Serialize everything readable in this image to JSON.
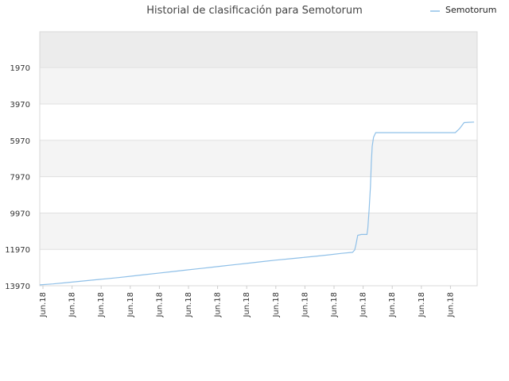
{
  "chart_data": {
    "type": "line",
    "title": "Historial de clasificación para Semotorum",
    "xlabel": "",
    "ylabel": "",
    "y_inverted": true,
    "ylim": [
      13970,
      0
    ],
    "y_ticks": [
      1970,
      3970,
      5970,
      7970,
      9970,
      11970,
      13970
    ],
    "x_tick_labels": [
      "Jun.18",
      "Jun.18",
      "Jun.18",
      "Jun.18",
      "Jun.18",
      "Jun.18",
      "Jun.18",
      "Jun.18",
      "Jun.18",
      "Jun.18",
      "Jun.18",
      "Jun.18",
      "Jun.18",
      "Jun.18",
      "Jun.18"
    ],
    "x_range": [
      0,
      100
    ],
    "grid": true,
    "legend_position": "top-right",
    "colors": {
      "series": "#8fc0e8",
      "band_light": "#f4f4f4",
      "band_dark": "#ececec",
      "gridline": "#e0e0e0",
      "axis": "#cccccc"
    },
    "series": [
      {
        "name": "Semotorum",
        "points": [
          [
            0,
            13920
          ],
          [
            3,
            13870
          ],
          [
            6,
            13800
          ],
          [
            9,
            13730
          ],
          [
            12,
            13660
          ],
          [
            15,
            13590
          ],
          [
            18,
            13520
          ],
          [
            21,
            13440
          ],
          [
            24,
            13360
          ],
          [
            27,
            13280
          ],
          [
            30,
            13200
          ],
          [
            33,
            13120
          ],
          [
            36,
            13040
          ],
          [
            39,
            12960
          ],
          [
            42,
            12880
          ],
          [
            45,
            12800
          ],
          [
            48,
            12720
          ],
          [
            51,
            12640
          ],
          [
            54,
            12560
          ],
          [
            57,
            12490
          ],
          [
            60,
            12420
          ],
          [
            63,
            12350
          ],
          [
            66,
            12270
          ],
          [
            69,
            12190
          ],
          [
            71.5,
            12130
          ],
          [
            72,
            12000
          ],
          [
            72.3,
            11700
          ],
          [
            72.7,
            11200
          ],
          [
            73.5,
            11150
          ],
          [
            74.8,
            11150
          ],
          [
            75,
            10800
          ],
          [
            75.3,
            9800
          ],
          [
            75.6,
            8500
          ],
          [
            75.8,
            7200
          ],
          [
            76,
            6300
          ],
          [
            76.3,
            5800
          ],
          [
            76.8,
            5550
          ],
          [
            80,
            5550
          ],
          [
            85,
            5550
          ],
          [
            90,
            5550
          ],
          [
            95,
            5550
          ],
          [
            96,
            5320
          ],
          [
            97,
            5000
          ],
          [
            98,
            4980
          ],
          [
            99.3,
            4970
          ]
        ]
      }
    ]
  }
}
